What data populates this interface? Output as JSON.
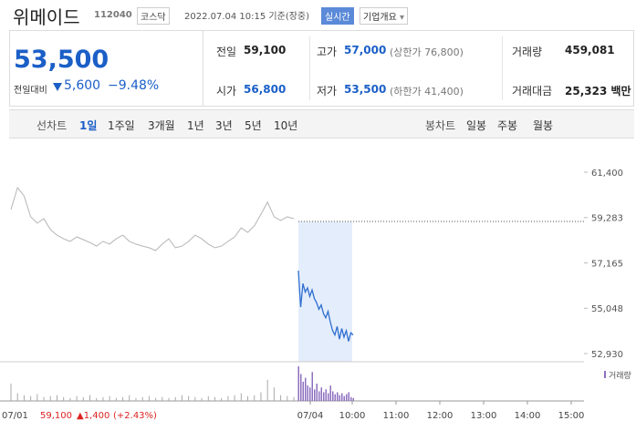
{
  "header": {
    "name": "위메이드",
    "code": "112040",
    "market": "코스닥",
    "timestamp": "2022.07.04 10:15 기준(장중)",
    "realtime": "실시간",
    "company_info": "기업개요"
  },
  "summary": {
    "price": "53,500",
    "change_label": "전일대비",
    "change": "5,600",
    "change_rate": "−9.48%",
    "items": [
      {
        "label": "전일",
        "value": "59,100"
      },
      {
        "label": "고가",
        "value": "57,000",
        "note": "(상한가 76,800)"
      },
      {
        "label": "거래량",
        "value": "459,081"
      },
      {
        "label": "시가",
        "value": "56,800"
      },
      {
        "label": "저가",
        "value": "53,500",
        "note": "(하한가 41,400)"
      },
      {
        "label": "거래대금",
        "value": "25,323 백만"
      }
    ]
  },
  "tabs": {
    "line_label": "선차트",
    "line": [
      "1일",
      "1주일",
      "3개월",
      "1년",
      "3년",
      "5년",
      "10년"
    ],
    "candle_label": "봉차트",
    "candle": [
      "일봉",
      "주봉",
      "월봉"
    ]
  },
  "chart_data": {
    "type": "line",
    "ylim": [
      52930,
      61400
    ],
    "yticks": [
      {
        "value": 61400,
        "label": "61,400"
      },
      {
        "value": 59283,
        "label": "59,283"
      },
      {
        "value": 57165,
        "label": "57,165"
      },
      {
        "value": 55048,
        "label": "55,048"
      },
      {
        "value": 52930,
        "label": "52,930"
      }
    ],
    "prev_close": 59100,
    "xlabels": [
      "07/04",
      "10:00",
      "11:00",
      "12:00",
      "13:00",
      "14:00",
      "15:00"
    ],
    "series": [
      {
        "color": "#b5b5b5",
        "values": [
          59660,
          60680,
          60290,
          59320,
          59020,
          59230,
          58720,
          58460,
          58290,
          58170,
          58380,
          58250,
          58120,
          57950,
          58170,
          58040,
          58290,
          58460,
          58170,
          58040,
          57950,
          57870,
          57740,
          58040,
          58290,
          57870,
          57950,
          58170,
          58460,
          58290,
          58040,
          57870,
          57950,
          58170,
          58380,
          58800,
          58590,
          58890,
          59440,
          60000,
          59320,
          59150,
          59320,
          59230
        ],
        "volume": [
          18,
          8,
          6,
          5,
          7,
          4,
          5,
          6,
          4,
          3,
          5,
          4,
          6,
          3,
          4,
          5,
          3,
          4,
          6,
          3,
          4,
          5,
          3,
          4,
          3,
          4,
          6,
          5,
          4,
          3,
          5,
          4,
          3,
          5,
          6,
          8,
          5,
          6,
          9,
          22,
          14,
          6,
          5,
          4
        ]
      },
      {
        "color": "#2f6fd0",
        "values": [
          56800,
          55100,
          56200,
          55800,
          56000,
          55600,
          55900,
          55500,
          55300,
          55000,
          55200,
          54800,
          54600,
          54900,
          54400,
          54000,
          53800,
          54200,
          53600,
          54100,
          53700,
          54000,
          53500,
          53900,
          53800
        ],
        "volume": [
          36,
          28,
          20,
          24,
          16,
          14,
          30,
          12,
          18,
          10,
          14,
          9,
          12,
          8,
          16,
          10,
          7,
          9,
          6,
          8,
          5,
          7,
          9,
          4,
          3
        ]
      }
    ],
    "footer": {
      "date": "07/01",
      "price": "59,100",
      "change": "▲1,400",
      "rate": "(+2.43%)"
    },
    "volume_label": "거래량"
  }
}
